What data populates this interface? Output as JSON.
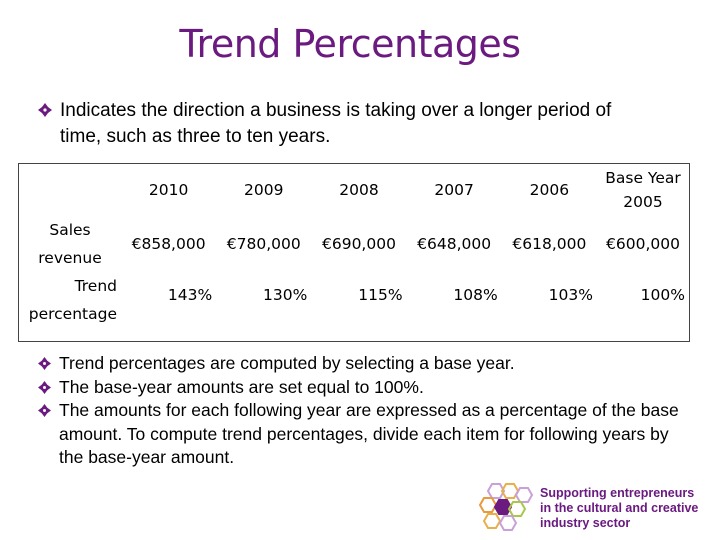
{
  "title": "Trend Percentages",
  "intro": "Indicates the direction a business is taking over a longer period of time, such as three to ten years.",
  "table": {
    "header": [
      "2010",
      "2009",
      "2008",
      "2007",
      "2006",
      "Base Year 2005"
    ],
    "rows": [
      [
        "Sales revenue",
        "€858,000",
        "€780,000",
        "€690,000",
        "€648,000",
        "€618,000",
        "€600,000"
      ],
      [
        "Trend percentage",
        "143%",
        "130%",
        "115%",
        "108%",
        "103%",
        "100%"
      ]
    ]
  },
  "bullets": [
    "Trend percentages are computed by selecting a base year.",
    "The base-year amounts are set equal to 100%.",
    "The amounts for each following year are expressed as a percentage of the base amount. To compute trend percentages, divide each item for following years by the base-year amount."
  ],
  "logo": {
    "lines": [
      "Supporting entrepreneurs",
      "in the cultural and creative",
      "industry sector"
    ]
  }
}
